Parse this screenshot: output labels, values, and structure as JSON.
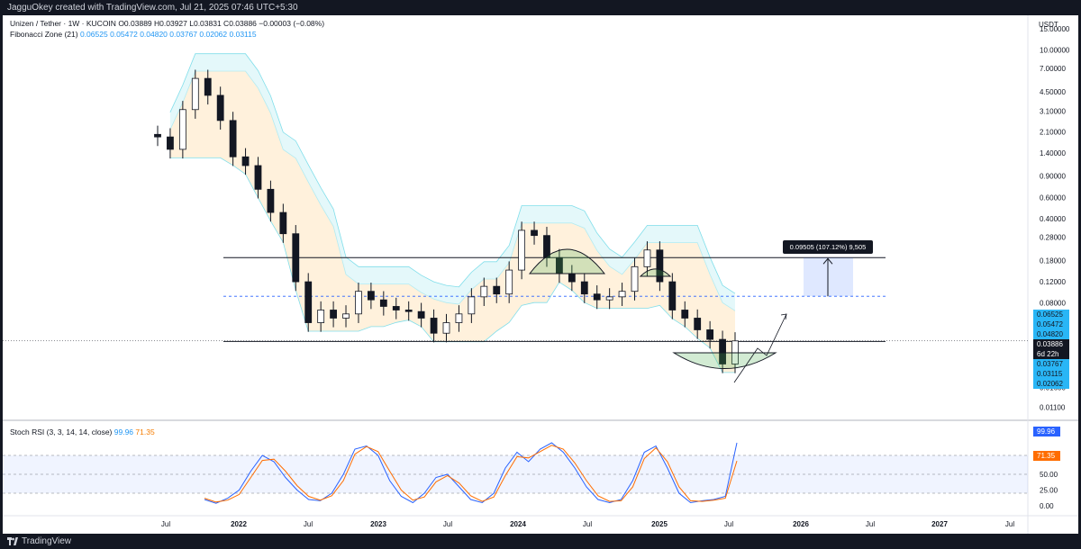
{
  "header": {
    "created_by": "JagguOkey created with TradingView.com, Jul 21, 2025 07:46 UTC+5:30"
  },
  "legend": {
    "symbol": "Unizen / Tether · 1W · KUCOIN",
    "ohlc": "O0.03889 H0.03927 L0.03831 C0.03886 −0.00003 (−0.08%)",
    "fib_label": "Fibonacci Zone (21)",
    "fib_values": [
      "0.06525",
      "0.05472",
      "0.04820",
      "0.03767",
      "0.02062",
      "0.03115"
    ],
    "rsi_label": "Stoch RSI (3, 3, 14, 14, close)",
    "rsi_k": "99.96",
    "rsi_d": "71.35"
  },
  "price_axis": {
    "currency": "USDT",
    "ticks": [
      "15.00000",
      "10.00000",
      "7.00000",
      "4.50000",
      "3.10000",
      "2.10000",
      "1.40000",
      "0.90000",
      "0.60000",
      "0.40000",
      "0.28000",
      "0.18000",
      "0.12000",
      "0.08000",
      "0.01600",
      "0.01100"
    ],
    "tags": [
      {
        "text": "0.06525",
        "color": "#29b6f6"
      },
      {
        "text": "0.05472",
        "color": "#29b6f6"
      },
      {
        "text": "0.04820",
        "color": "#29b6f6"
      },
      {
        "text": "0.03886",
        "color": "#131722"
      },
      {
        "text": "6d 22h",
        "color": "#131722"
      },
      {
        "text": "0.03767",
        "color": "#29b6f6"
      },
      {
        "text": "0.03115",
        "color": "#29b6f6"
      },
      {
        "text": "0.02062",
        "color": "#29b6f6"
      }
    ]
  },
  "rsi_axis": {
    "ticks": [
      "50.00",
      "25.00",
      "0.00"
    ],
    "k_tag": {
      "text": "99.96",
      "color": "#2962ff"
    },
    "d_tag": {
      "text": "71.35",
      "color": "#ff6d00"
    }
  },
  "time_axis": {
    "labels": [
      "Jul",
      "2022",
      "Jul",
      "2023",
      "Jul",
      "2024",
      "Jul",
      "2025",
      "Jul",
      "2026",
      "Jul",
      "2027",
      "Jul"
    ]
  },
  "measure": {
    "label": "0.09505 (107.12%) 9,505"
  },
  "footer": {
    "brand": "TradingView"
  },
  "chart_data": [
    {
      "type": "candlestick",
      "title": "Unizen / Tether · 1W · KUCOIN",
      "scale": "log",
      "ylim": [
        0.009,
        16
      ],
      "x": [
        "2021-09",
        "2021-10",
        "2021-11",
        "2021-12",
        "2022-01",
        "2022-02",
        "2022-03",
        "2022-04",
        "2022-05",
        "2022-06",
        "2022-07",
        "2022-08",
        "2022-09",
        "2022-10",
        "2022-11",
        "2022-12",
        "2023-01",
        "2023-02",
        "2023-03",
        "2023-04",
        "2023-05",
        "2023-06",
        "2023-07",
        "2023-08",
        "2023-09",
        "2023-10",
        "2023-11",
        "2023-12",
        "2024-01",
        "2024-02",
        "2024-03",
        "2024-04",
        "2024-05",
        "2024-06",
        "2024-07",
        "2024-08",
        "2024-09",
        "2024-10",
        "2024-11",
        "2024-12",
        "2025-01",
        "2025-02",
        "2025-03",
        "2025-04",
        "2025-05",
        "2025-06",
        "2025-07"
      ],
      "close": [
        1.9,
        1.5,
        3.2,
        5.8,
        4.2,
        2.6,
        1.3,
        1.1,
        0.7,
        0.45,
        0.3,
        0.12,
        0.055,
        0.07,
        0.06,
        0.065,
        0.1,
        0.085,
        0.075,
        0.07,
        0.068,
        0.06,
        0.045,
        0.055,
        0.065,
        0.09,
        0.11,
        0.095,
        0.15,
        0.32,
        0.29,
        0.19,
        0.14,
        0.12,
        0.095,
        0.085,
        0.09,
        0.1,
        0.16,
        0.22,
        0.12,
        0.07,
        0.06,
        0.048,
        0.04,
        0.025,
        0.03886
      ],
      "horizontal_levels": [
        0.19,
        0.091,
        0.0385
      ],
      "measure_label": "0.09505 (107.12%) 9,505"
    },
    {
      "type": "line",
      "title": "Stoch RSI (3, 3, 14, 14, close)",
      "ylim": [
        0,
        100
      ],
      "hlines": [
        80,
        50,
        20
      ],
      "series": [
        {
          "name": "K",
          "color": "#2962ff",
          "values": [
            10,
            4,
            12,
            25,
            55,
            80,
            70,
            45,
            25,
            10,
            8,
            20,
            50,
            90,
            95,
            80,
            40,
            15,
            5,
            20,
            45,
            50,
            30,
            10,
            5,
            20,
            60,
            85,
            70,
            90,
            100,
            85,
            60,
            30,
            10,
            5,
            10,
            40,
            85,
            95,
            60,
            20,
            5,
            8,
            10,
            15,
            99.96
          ]
        },
        {
          "name": "D",
          "color": "#ff6d00",
          "values": [
            12,
            6,
            9,
            18,
            45,
            72,
            74,
            55,
            32,
            15,
            9,
            16,
            40,
            82,
            94,
            86,
            55,
            25,
            9,
            14,
            38,
            48,
            36,
            16,
            7,
            14,
            48,
            78,
            76,
            86,
            96,
            90,
            68,
            40,
            16,
            7,
            8,
            30,
            75,
            92,
            70,
            30,
            8,
            7,
            9,
            12,
            71.35
          ]
        }
      ]
    }
  ]
}
